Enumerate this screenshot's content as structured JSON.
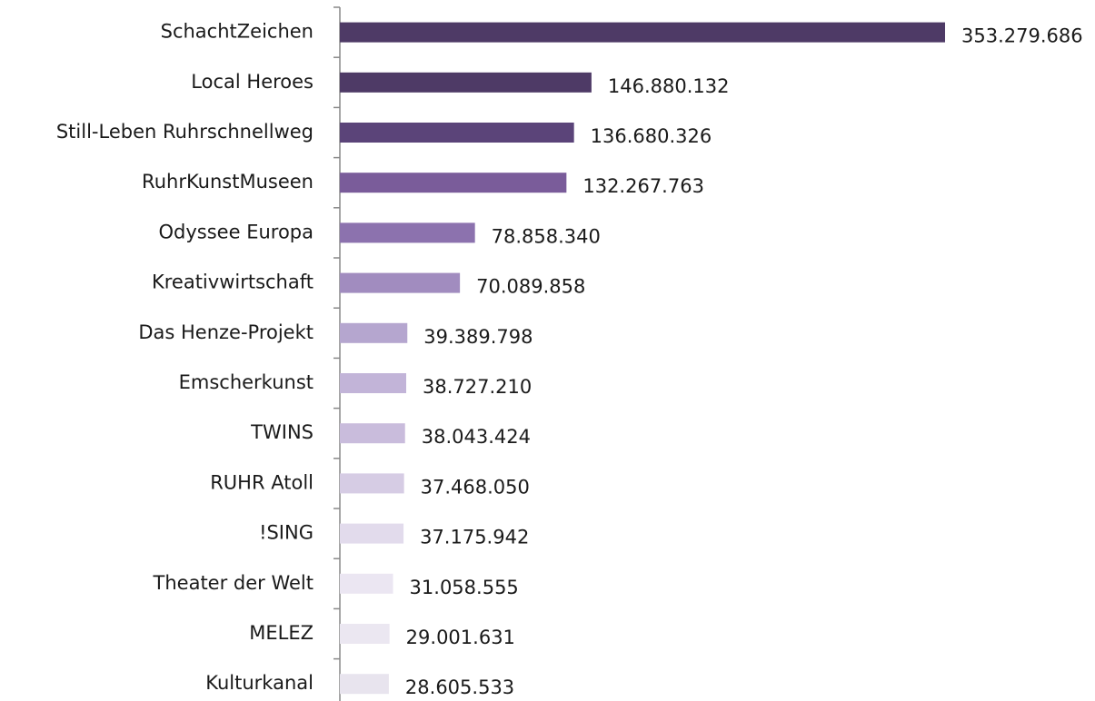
{
  "chart_data": {
    "type": "bar",
    "orientation": "horizontal",
    "categories": [
      "SchachtZeichen",
      "Local Heroes",
      "Still-Leben Ruhrschnellweg",
      "RuhrKunstMuseen",
      "Odyssee Europa",
      "Kreativwirtschaft",
      "Das Henze-Projekt",
      "Emscherkunst",
      "TWINS",
      "RUHR Atoll",
      "!SING",
      "Theater der Welt",
      "MELEZ",
      "Kulturkanal"
    ],
    "values": [
      353279686,
      146880132,
      136680326,
      132267763,
      78858340,
      70089858,
      39389798,
      38727210,
      38043424,
      37468050,
      37175942,
      31058555,
      29001631,
      28605533
    ],
    "value_labels": [
      "353.279.686",
      "146.880.132",
      "136.680.326",
      "132.267.763",
      "78.858.340",
      "70.089.858",
      "39.389.798",
      "38.727.210",
      "38.043.424",
      "37.468.050",
      "37.175.942",
      "31.058.555",
      "29.001.631",
      "28.605.533"
    ],
    "colors": [
      "#4e3a66",
      "#4e3a66",
      "#5b4479",
      "#7a5c9a",
      "#8c72ae",
      "#a18cbf",
      "#b5a6cf",
      "#c2b4d8",
      "#c9bcdc",
      "#d6cce4",
      "#e2dbec",
      "#ebe6f2",
      "#ebe7f1",
      "#e8e4ee"
    ]
  }
}
